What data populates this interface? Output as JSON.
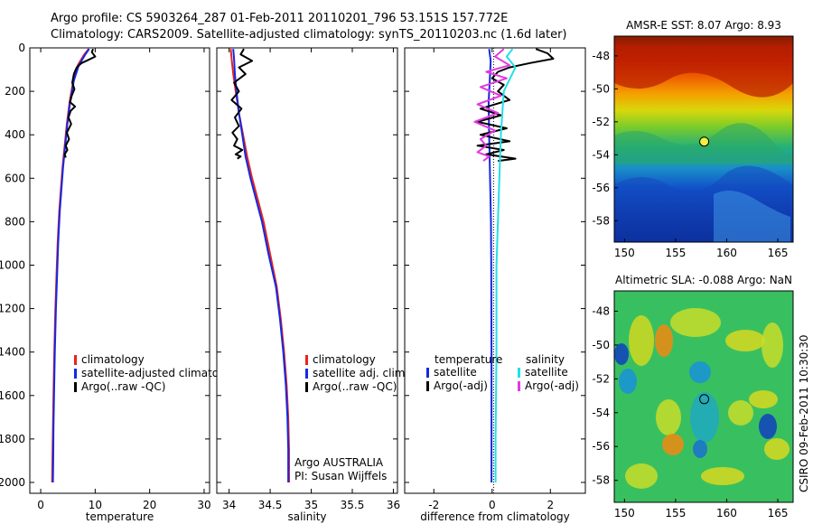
{
  "header": {
    "title_line1": "Argo profile: CS 5903264_287 01-Feb-2011 20110201_796 53.151S 157.772E",
    "title_line2": "Climatology: CARS2009. Satellite-adjusted climatology: synTS_20110203.nc (1.6d later)"
  },
  "side_label": "CSIRO 09-Feb-2011 10:30:30",
  "colors": {
    "climatology": "#e8241c",
    "satellite": "#1428e6",
    "argo": "#000000",
    "sat_salinity": "#22e0e6",
    "argo_salinity": "#e23ae0"
  },
  "chart_data": [
    {
      "type": "line",
      "id": "temperature",
      "xlabel": "temperature",
      "ylabel": "",
      "xlim": [
        -2,
        31
      ],
      "ylim": [
        2050,
        0
      ],
      "xticks": [
        0,
        10,
        20,
        30
      ],
      "yticks": [
        0,
        200,
        400,
        600,
        800,
        1000,
        1200,
        1400,
        1600,
        1800,
        2000
      ],
      "legend": [
        "climatology",
        "satellite-adjusted climatology",
        "Argo(..raw -QC)"
      ],
      "series": [
        {
          "name": "climatology",
          "color": "#e8241c",
          "x": [
            8.8,
            8.0,
            6.8,
            6.0,
            5.3,
            4.8,
            4.4,
            4.0,
            3.7,
            3.4,
            3.1,
            2.9,
            2.7,
            2.5,
            2.35,
            2.25,
            2.15,
            2.1
          ],
          "y": [
            5,
            30,
            80,
            150,
            250,
            350,
            450,
            550,
            650,
            750,
            900,
            1050,
            1200,
            1400,
            1600,
            1750,
            1900,
            2000
          ]
        },
        {
          "name": "satellite-adjusted climatology",
          "color": "#1428e6",
          "x": [
            8.9,
            8.2,
            7.0,
            6.1,
            5.4,
            4.9,
            4.5,
            4.1,
            3.8,
            3.5,
            3.2,
            3.0,
            2.8,
            2.6,
            2.45,
            2.35,
            2.3,
            2.25
          ],
          "y": [
            5,
            30,
            80,
            150,
            250,
            350,
            450,
            550,
            650,
            750,
            900,
            1050,
            1200,
            1400,
            1600,
            1750,
            1900,
            2000
          ]
        },
        {
          "name": "Argo(..raw -QC)",
          "color": "#000000",
          "x": [
            9.6,
            9.4,
            10.0,
            8.8,
            7.5,
            6.6,
            6.1,
            5.8,
            6.2,
            5.7,
            5.4,
            6.3,
            5.5,
            5.1,
            5.6,
            4.8,
            5.2,
            4.6,
            4.9,
            4.4,
            4.6
          ],
          "y": [
            5,
            20,
            40,
            55,
            70,
            90,
            120,
            160,
            190,
            220,
            250,
            270,
            290,
            320,
            350,
            390,
            420,
            450,
            470,
            490,
            505
          ]
        }
      ]
    },
    {
      "type": "line",
      "id": "salinity",
      "xlabel": "salinity",
      "ylabel": "",
      "xlim": [
        33.85,
        36.05
      ],
      "ylim": [
        2050,
        0
      ],
      "xticks": [
        34,
        34.5,
        35,
        35.5,
        36
      ],
      "xticklabels": [
        "34",
        "34.5",
        "35",
        "35.5",
        "36"
      ],
      "legend": [
        "climatology",
        "satellite adj. clim.",
        "Argo(..raw -QC)"
      ],
      "annotation": [
        "Argo AUSTRALIA",
        "PI: Susan Wijffels"
      ],
      "series": [
        {
          "name": "climatology",
          "color": "#e8241c",
          "x": [
            34.02,
            34.03,
            34.05,
            34.08,
            34.12,
            34.17,
            34.22,
            34.28,
            34.35,
            34.42,
            34.5,
            34.58,
            34.63,
            34.67,
            34.7,
            34.72,
            34.73,
            34.73
          ],
          "y": [
            5,
            50,
            120,
            200,
            300,
            400,
            500,
            600,
            700,
            800,
            950,
            1100,
            1250,
            1400,
            1550,
            1700,
            1850,
            2000
          ]
        },
        {
          "name": "satellite adj. clim.",
          "color": "#1428e6",
          "x": [
            34.05,
            34.06,
            34.07,
            34.09,
            34.12,
            34.16,
            34.2,
            34.26,
            34.33,
            34.4,
            34.48,
            34.57,
            34.62,
            34.66,
            34.69,
            34.71,
            34.72,
            34.72
          ],
          "y": [
            5,
            50,
            120,
            200,
            300,
            400,
            500,
            600,
            700,
            800,
            950,
            1100,
            1250,
            1400,
            1550,
            1700,
            1850,
            2000
          ]
        },
        {
          "name": "Argo(..raw -QC)",
          "color": "#000000",
          "x": [
            34.18,
            34.14,
            34.28,
            34.12,
            34.2,
            34.06,
            34.12,
            34.03,
            34.15,
            34.07,
            34.12,
            34.04,
            34.1,
            34.06,
            34.16,
            34.08,
            34.14,
            34.1
          ],
          "y": [
            5,
            30,
            60,
            90,
            120,
            160,
            200,
            240,
            280,
            320,
            360,
            390,
            420,
            450,
            470,
            490,
            500,
            510
          ]
        }
      ]
    },
    {
      "type": "line",
      "id": "difference",
      "xlabel": "difference from climatology",
      "ylabel": "",
      "xlim": [
        -3,
        3.2
      ],
      "ylim": [
        2050,
        0
      ],
      "xticks": [
        -2,
        0,
        2
      ],
      "legend_left_title": "temperature",
      "legend_right_title": "salinity",
      "legend_left": [
        "satellite",
        "Argo(-adj)"
      ],
      "legend_right": [
        "satellite",
        "Argo(-adj)"
      ],
      "series": [
        {
          "name": "satellite",
          "group": "temperature",
          "color": "#1428e6",
          "x": [
            -0.1,
            -0.05,
            -0.08,
            -0.12,
            -0.1,
            -0.07,
            -0.04,
            -0.03,
            -0.02,
            -0.02,
            -0.02
          ],
          "y": [
            5,
            60,
            150,
            250,
            400,
            600,
            800,
            1000,
            1400,
            1800,
            2000
          ]
        },
        {
          "name": "Argo(-adj)",
          "group": "temperature",
          "color": "#000000",
          "x": [
            1.5,
            1.9,
            2.1,
            1.3,
            0.6,
            0.2,
            0.0,
            0.4,
            0.2,
            0.6,
            -0.4,
            0.3,
            -0.5,
            0.5,
            -0.4,
            0.6,
            -0.5,
            0.4,
            -0.2,
            0.8,
            0.2
          ],
          "y": [
            5,
            25,
            50,
            70,
            90,
            110,
            140,
            170,
            200,
            240,
            280,
            310,
            340,
            370,
            400,
            430,
            450,
            470,
            490,
            510,
            520
          ]
        },
        {
          "name": "satellite",
          "group": "salinity",
          "color": "#22e0e6",
          "x": [
            0.7,
            0.5,
            0.8,
            0.4,
            0.3,
            0.25,
            0.2,
            0.15,
            0.15,
            0.12,
            0.12
          ],
          "y": [
            5,
            40,
            90,
            200,
            400,
            600,
            800,
            1000,
            1400,
            1800,
            2000
          ]
        },
        {
          "name": "Argo(-adj)",
          "group": "salinity",
          "color": "#e23ae0",
          "x": [
            0.4,
            0.1,
            0.6,
            -0.2,
            0.5,
            -0.4,
            0.3,
            -0.5,
            0.2,
            -0.6,
            0.1,
            -0.4,
            -0.2,
            -0.5,
            -0.1,
            -0.3
          ],
          "y": [
            5,
            40,
            80,
            110,
            140,
            180,
            220,
            260,
            300,
            340,
            380,
            420,
            450,
            480,
            500,
            520
          ]
        }
      ]
    },
    {
      "type": "heatmap",
      "id": "amsre-sst",
      "title": "AMSR-E SST: 8.07 Argo: 8.93",
      "xlim": [
        149,
        166.5
      ],
      "ylim": [
        -59.3,
        -46.8
      ],
      "xticks": [
        150,
        155,
        160,
        165
      ],
      "yticks": [
        -48,
        -50,
        -52,
        -54,
        -56,
        -58
      ],
      "marker": {
        "lon": 157.8,
        "lat": -53.2
      }
    },
    {
      "type": "heatmap",
      "id": "altimetric-sla",
      "title": "Altimetric SLA: -0.088 Argo: NaN",
      "xlim": [
        149,
        166.5
      ],
      "ylim": [
        -59.3,
        -46.8
      ],
      "xticks": [
        150,
        155,
        160,
        165
      ],
      "yticks": [
        -48,
        -50,
        -52,
        -54,
        -56,
        -58
      ],
      "marker": {
        "lon": 157.8,
        "lat": -53.2
      }
    }
  ]
}
